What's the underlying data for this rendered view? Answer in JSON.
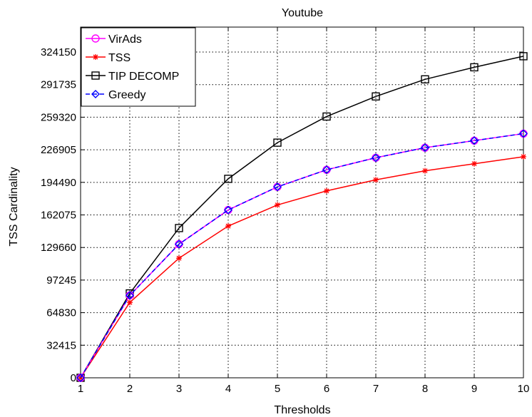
{
  "chart_data": {
    "type": "line",
    "title": "Youtube",
    "xlabel": "Thresholds",
    "ylabel": "TSS Cardinality",
    "x": [
      1,
      2,
      3,
      4,
      5,
      6,
      7,
      8,
      9,
      10
    ],
    "xlim": [
      1,
      10
    ],
    "ylim": [
      0,
      349000
    ],
    "xticks": [
      "1",
      "2",
      "3",
      "4",
      "5",
      "6",
      "7",
      "8",
      "9",
      "10"
    ],
    "yticks": [
      0,
      32415,
      64830,
      97245,
      129660,
      162075,
      194490,
      226905,
      259320,
      291735,
      324150
    ],
    "ytick_labels": [
      "0",
      "32415",
      "64830",
      "97245",
      "129660",
      "162075",
      "194490",
      "226905",
      "259320",
      "291735",
      "324150"
    ],
    "grid": "dotted",
    "legend_position": "top-left",
    "series": [
      {
        "name": "VirAds",
        "color": "#ff00ff",
        "marker": "circle",
        "line": "solid",
        "values": [
          0,
          82000,
          133000,
          167000,
          190000,
          207000,
          219000,
          229000,
          236000,
          243000
        ]
      },
      {
        "name": "TSS",
        "color": "#ff0000",
        "marker": "asterisk",
        "line": "solid",
        "values": [
          0,
          75000,
          119000,
          151000,
          172000,
          186000,
          197000,
          206000,
          213000,
          220000
        ]
      },
      {
        "name": "TIP DECOMP",
        "color": "#000000",
        "marker": "square",
        "line": "solid",
        "values": [
          0,
          84000,
          149000,
          198000,
          234000,
          260000,
          280000,
          297000,
          309000,
          320000
        ]
      },
      {
        "name": "Greedy",
        "color": "#0000ff",
        "marker": "diamond",
        "line": "dashed",
        "values": [
          0,
          82000,
          133000,
          167000,
          190000,
          207000,
          219000,
          229000,
          236000,
          243000
        ]
      }
    ]
  }
}
